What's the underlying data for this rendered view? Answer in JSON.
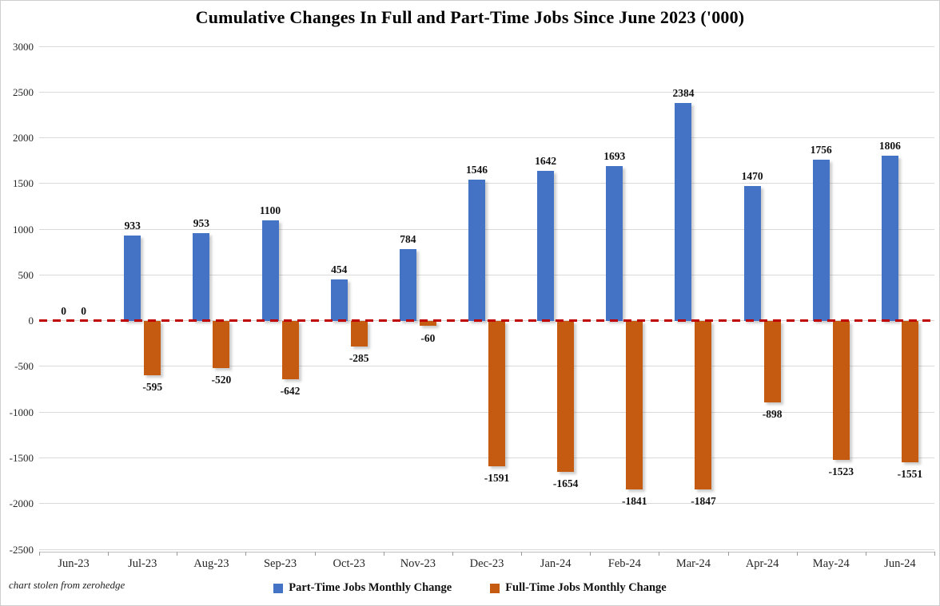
{
  "title": "Cumulative Changes In Full and Part-Time Jobs Since June 2023 ('000)",
  "footnote": "chart stolen from zerohedge",
  "colors": {
    "part_time": "#4472C4",
    "full_time": "#C55A11",
    "zero_line": "#C00000",
    "gridline": "#D9D9D9"
  },
  "legend": {
    "items": [
      {
        "label": "Part-Time Jobs Monthly Change",
        "color": "#4472C4"
      },
      {
        "label": "Full-Time Jobs Monthly Change",
        "color": "#C55A11"
      }
    ]
  },
  "chart_data": {
    "type": "bar",
    "title": "Cumulative Changes In Full and Part-Time Jobs Since June 2023 ('000)",
    "categories": [
      "Jun-23",
      "Jul-23",
      "Aug-23",
      "Sep-23",
      "Oct-23",
      "Nov-23",
      "Dec-23",
      "Jan-24",
      "Feb-24",
      "Mar-24",
      "Apr-24",
      "May-24",
      "Jun-24"
    ],
    "series": [
      {
        "name": "Part-Time Jobs Monthly Change",
        "color": "#4472C4",
        "values": [
          0,
          933,
          953,
          1100,
          454,
          784,
          1546,
          1642,
          1693,
          2384,
          1470,
          1756,
          1806
        ]
      },
      {
        "name": "Full-Time Jobs Monthly Change",
        "color": "#C55A11",
        "values": [
          0,
          -595,
          -520,
          -642,
          -285,
          -60,
          -1591,
          -1654,
          -1841,
          -1847,
          -898,
          -1523,
          -1551
        ]
      }
    ],
    "xlabel": "",
    "ylabel": "",
    "ylim": [
      -2500,
      3000
    ],
    "yticks": [
      3000,
      2500,
      2000,
      1500,
      1000,
      500,
      0,
      -500,
      -1000,
      -1500,
      -2000,
      -2500
    ],
    "grid": "horizontal",
    "legend_position": "bottom",
    "data_labels": true,
    "zero_line": {
      "style": "dashed",
      "color": "#C00000",
      "y": 0
    }
  }
}
